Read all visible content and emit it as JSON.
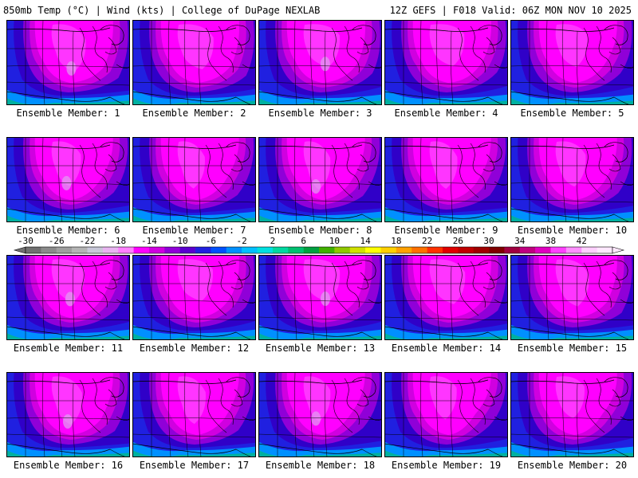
{
  "header": {
    "left": "850mb Temp (°C) | Wind (kts) | College of DuPage NEXLAB",
    "right": "12Z GEFS | F018 Valid: 06Z MON NOV 10 2025"
  },
  "colorbar": {
    "labels": [
      "-30",
      "-26",
      "-22",
      "-18",
      "-14",
      "-10",
      "-6",
      "-2",
      "2",
      "6",
      "10",
      "14",
      "18",
      "22",
      "26",
      "30",
      "34",
      "38",
      "42"
    ],
    "colors": [
      "#707070",
      "#8a8a8a",
      "#9e9e9e",
      "#b4b4b4",
      "#c8c8d8",
      "#e8b4f0",
      "#ff80ff",
      "#ff00ff",
      "#d000e0",
      "#9000d8",
      "#5a00d0",
      "#2020e0",
      "#0050ff",
      "#0090ff",
      "#00c0ff",
      "#00e0e0",
      "#00d8a0",
      "#00c070",
      "#00a040",
      "#40b000",
      "#90c800",
      "#d0e000",
      "#ffff00",
      "#ffd000",
      "#ffa000",
      "#ff7000",
      "#ff3000",
      "#e00000",
      "#c00000",
      "#a00000",
      "#800000",
      "#a00040",
      "#c00080",
      "#e000c0",
      "#ff40ff",
      "#ff90ff",
      "#ffd0ff",
      "#ffe8ff"
    ]
  },
  "members": [
    "Ensemble Member: 1",
    "Ensemble Member: 2",
    "Ensemble Member: 3",
    "Ensemble Member: 4",
    "Ensemble Member: 5",
    "Ensemble Member: 6",
    "Ensemble Member: 7",
    "Ensemble Member: 8",
    "Ensemble Member: 9",
    "Ensemble Member: 10",
    "Ensemble Member: 11",
    "Ensemble Member: 12",
    "Ensemble Member: 13",
    "Ensemble Member: 14",
    "Ensemble Member: 15",
    "Ensemble Member: 16",
    "Ensemble Member: 17",
    "Ensemble Member: 18",
    "Ensemble Member: 19",
    "Ensemble Member: 20"
  ],
  "map_colors": {
    "teal": "#00b0a0",
    "cyan": "#00c8e0",
    "lightblue": "#0090ff",
    "blue": "#2020e0",
    "darkblue": "#3000c8",
    "purple": "#9000d8",
    "violet": "#d000e0",
    "magenta": "#ff00ff",
    "pink": "#ff60ff",
    "lilac": "#e0a0f0",
    "lines": "#000000"
  }
}
